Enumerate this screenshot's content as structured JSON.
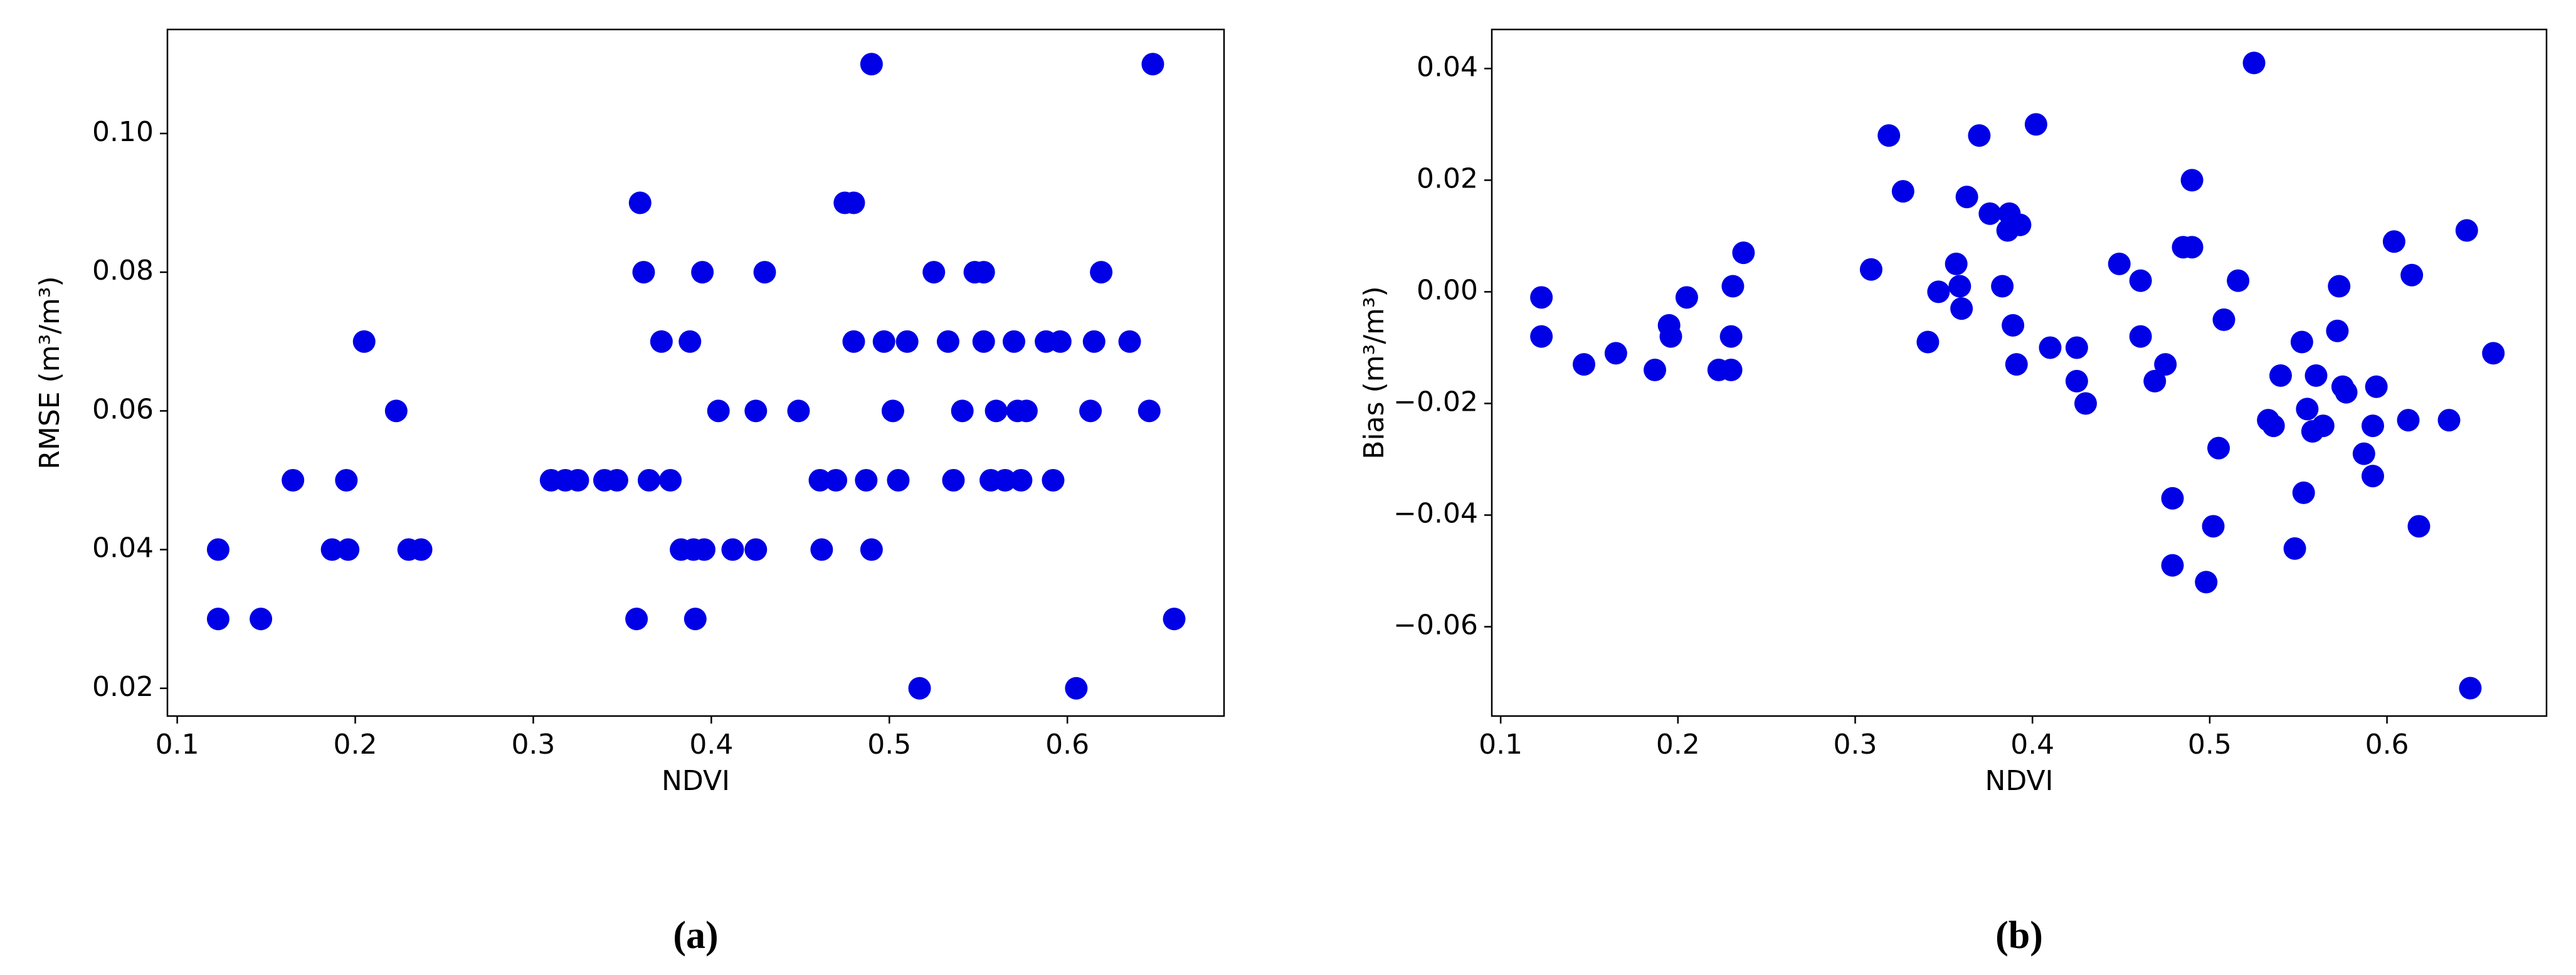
{
  "chart_data": [
    {
      "type": "scatter",
      "caption": "(a)",
      "x_label": "NDVI",
      "y_label": "RMSE  (m³/m³)",
      "color": "#0000e6",
      "xlim": [
        0.0945,
        0.688
      ],
      "ylim": [
        0.016,
        0.115
      ],
      "xticks": [
        0.1,
        0.2,
        0.3,
        0.4,
        0.5,
        0.6
      ],
      "yticks": [
        0.02,
        0.04,
        0.06,
        0.08,
        {
          "value": 0.1,
          "label": "0.10"
        }
      ],
      "x": [
        0.123,
        0.123,
        0.147,
        0.165,
        0.187,
        0.195,
        0.196,
        0.205,
        0.223,
        0.23,
        0.237,
        0.31,
        0.318,
        0.325,
        0.34,
        0.347,
        0.358,
        0.36,
        0.362,
        0.365,
        0.372,
        0.377,
        0.383,
        0.388,
        0.39,
        0.391,
        0.395,
        0.396,
        0.404,
        0.412,
        0.425,
        0.425,
        0.43,
        0.449,
        0.461,
        0.462,
        0.47,
        0.475,
        0.48,
        0.48,
        0.487,
        0.49,
        0.49,
        0.497,
        0.502,
        0.505,
        0.51,
        0.517,
        0.525,
        0.533,
        0.536,
        0.541,
        0.548,
        0.553,
        0.553,
        0.557,
        0.56,
        0.565,
        0.57,
        0.572,
        0.574,
        0.577,
        0.588,
        0.592,
        0.596,
        0.605,
        0.613,
        0.615,
        0.619,
        0.635,
        0.646,
        0.648,
        0.66
      ],
      "values": [
        0.04,
        0.03,
        0.03,
        0.05,
        0.04,
        0.05,
        0.04,
        0.07,
        0.06,
        0.04,
        0.04,
        0.05,
        0.05,
        0.05,
        0.05,
        0.05,
        0.03,
        0.09,
        0.08,
        0.05,
        0.07,
        0.05,
        0.04,
        0.07,
        0.04,
        0.03,
        0.08,
        0.04,
        0.06,
        0.04,
        0.06,
        0.04,
        0.08,
        0.06,
        0.05,
        0.04,
        0.05,
        0.09,
        0.09,
        0.07,
        0.05,
        0.11,
        0.04,
        0.07,
        0.06,
        0.05,
        0.07,
        0.02,
        0.08,
        0.07,
        0.05,
        0.06,
        0.08,
        0.08,
        0.07,
        0.05,
        0.06,
        0.05,
        0.07,
        0.06,
        0.05,
        0.06,
        0.07,
        0.05,
        0.07,
        0.02,
        0.06,
        0.07,
        0.08,
        0.07,
        0.06,
        0.11,
        0.03
      ]
    },
    {
      "type": "scatter",
      "caption": "(b)",
      "x_label": "NDVI",
      "y_label": "Bias  (m³/m³)",
      "color": "#0000e6",
      "xlim": [
        0.095,
        0.69
      ],
      "ylim": [
        -0.076,
        0.047
      ],
      "xticks": [
        0.1,
        0.2,
        0.3,
        0.4,
        0.5,
        0.6
      ],
      "yticks": [
        {
          "value": -0.06,
          "label": "−0.06"
        },
        {
          "value": -0.04,
          "label": "−0.04"
        },
        {
          "value": -0.02,
          "label": "−0.02"
        },
        {
          "value": 0,
          "label": "0.00"
        },
        0.02,
        0.04
      ],
      "x": [
        0.123,
        0.123,
        0.147,
        0.165,
        0.187,
        0.195,
        0.196,
        0.205,
        0.223,
        0.23,
        0.23,
        0.231,
        0.237,
        0.309,
        0.319,
        0.327,
        0.341,
        0.347,
        0.357,
        0.359,
        0.36,
        0.363,
        0.37,
        0.376,
        0.383,
        0.386,
        0.387,
        0.389,
        0.391,
        0.393,
        0.402,
        0.41,
        0.425,
        0.425,
        0.43,
        0.449,
        0.461,
        0.461,
        0.469,
        0.475,
        0.479,
        0.479,
        0.485,
        0.49,
        0.49,
        0.498,
        0.502,
        0.505,
        0.508,
        0.516,
        0.525,
        0.533,
        0.536,
        0.54,
        0.548,
        0.552,
        0.553,
        0.555,
        0.558,
        0.56,
        0.564,
        0.572,
        0.573,
        0.575,
        0.577,
        0.587,
        0.592,
        0.592,
        0.594,
        0.604,
        0.612,
        0.614,
        0.618,
        0.635,
        0.645,
        0.647,
        0.66
      ],
      "values": [
        -0.001,
        -0.008,
        -0.013,
        -0.011,
        -0.014,
        -0.006,
        -0.008,
        -0.001,
        -0.014,
        -0.014,
        -0.008,
        0.001,
        0.007,
        0.004,
        0.028,
        0.018,
        -0.009,
        0.0,
        0.005,
        0.001,
        -0.003,
        0.017,
        0.028,
        0.014,
        0.001,
        0.011,
        0.014,
        -0.006,
        -0.013,
        0.012,
        0.03,
        -0.01,
        -0.01,
        -0.016,
        -0.02,
        0.005,
        0.002,
        -0.008,
        -0.016,
        -0.013,
        -0.037,
        -0.049,
        0.008,
        0.008,
        0.02,
        -0.052,
        -0.042,
        -0.028,
        -0.005,
        0.002,
        0.041,
        -0.023,
        -0.024,
        -0.015,
        -0.046,
        -0.009,
        -0.036,
        -0.021,
        -0.025,
        -0.015,
        -0.024,
        -0.007,
        0.001,
        -0.017,
        -0.018,
        -0.029,
        -0.024,
        -0.033,
        -0.017,
        0.009,
        -0.023,
        0.003,
        -0.042,
        -0.023,
        0.011,
        -0.071,
        -0.011
      ]
    }
  ]
}
